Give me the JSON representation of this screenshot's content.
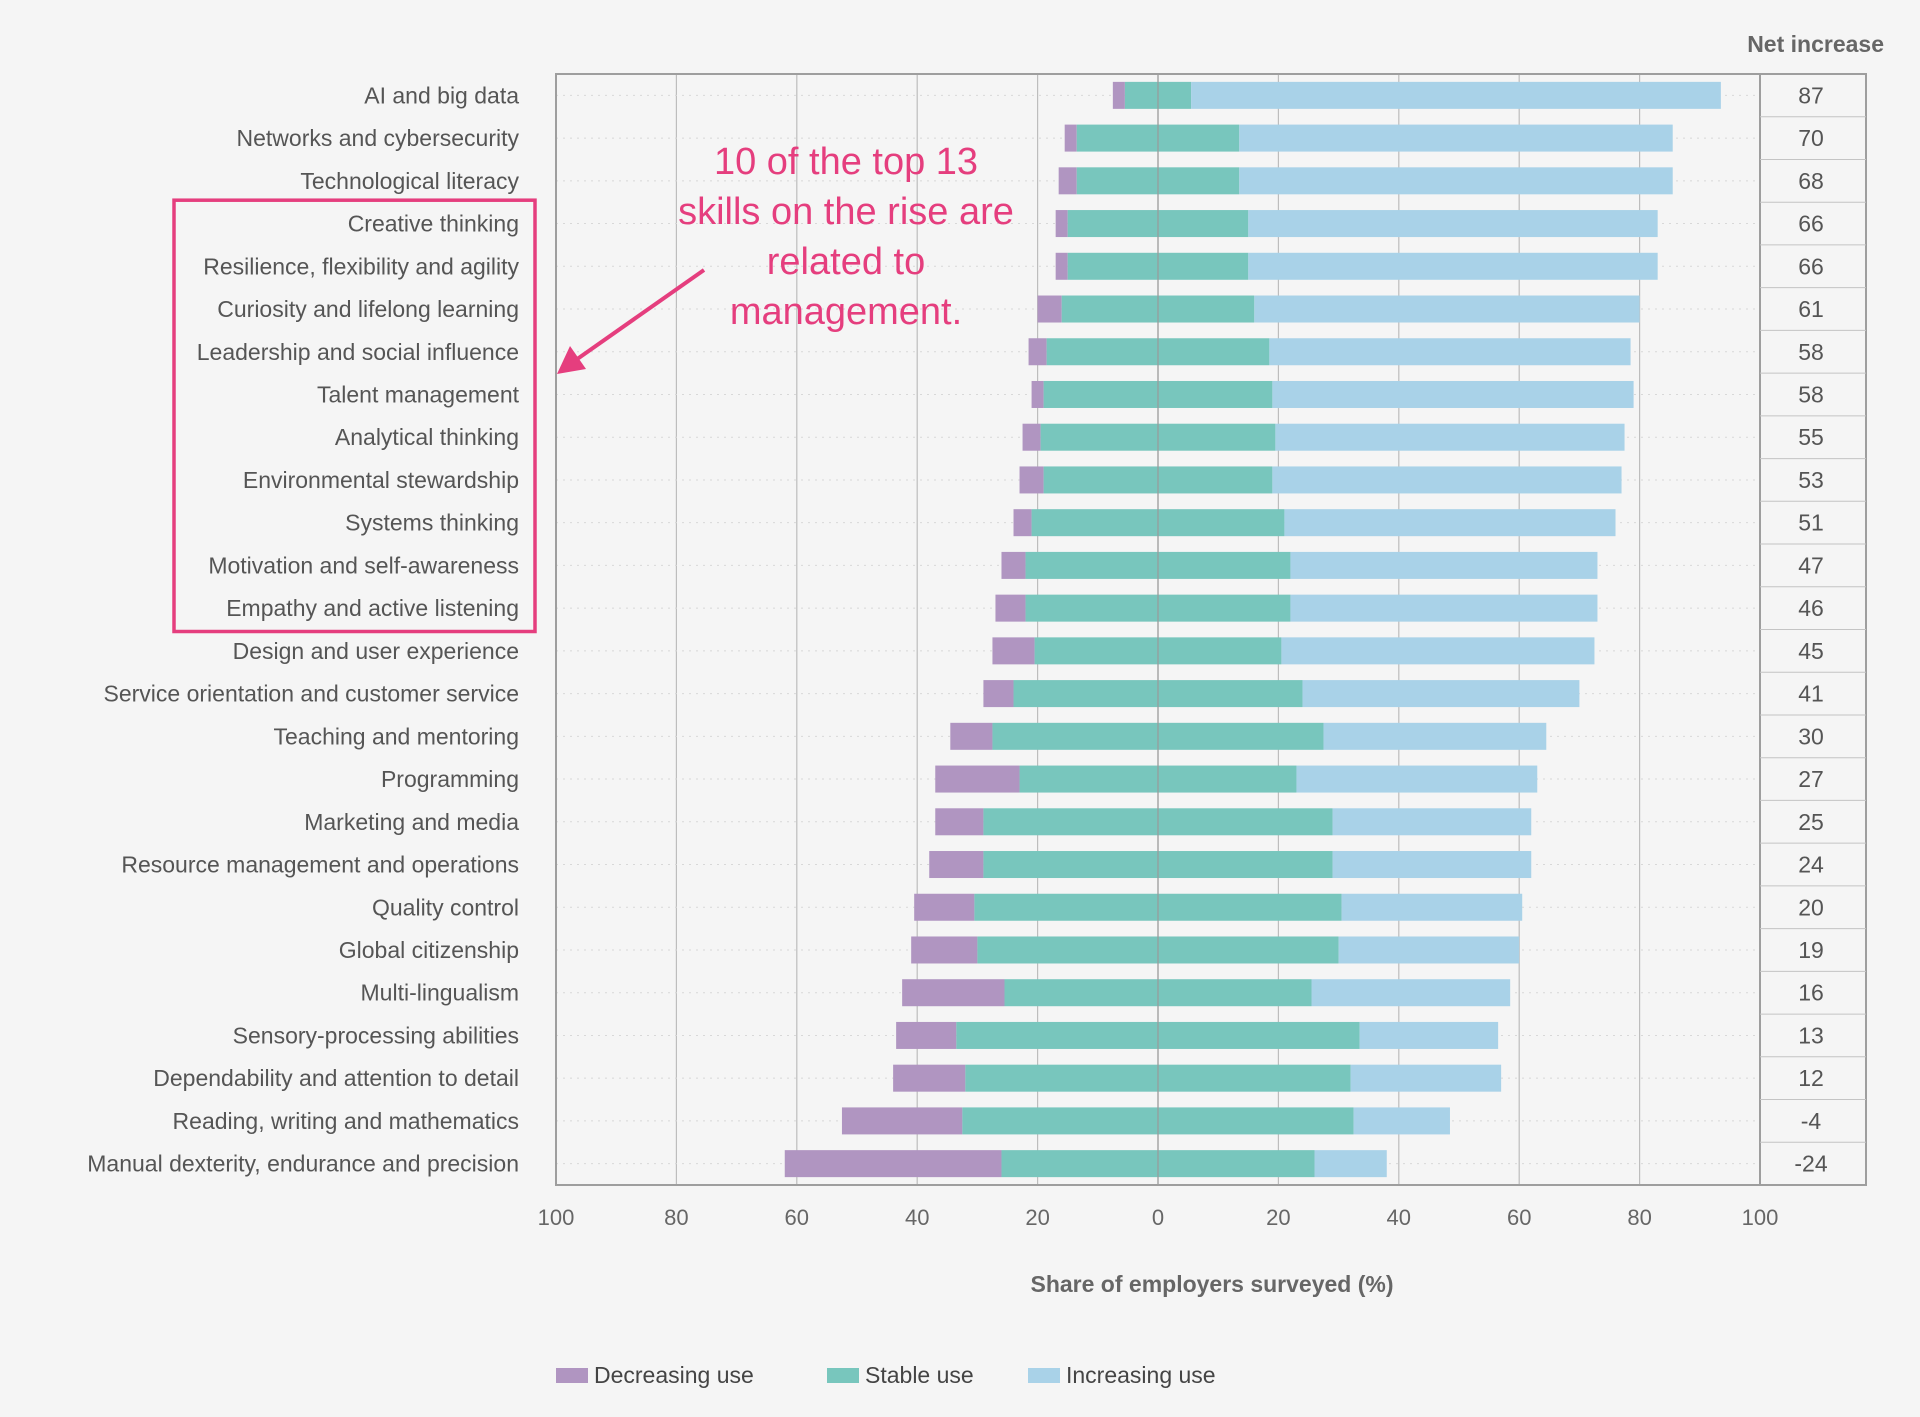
{
  "colors": {
    "decreasing": "#b095c1",
    "stable": "#78c6bd",
    "increasing": "#a9d2e8",
    "annotation": "#e53e7e",
    "grid": "#bdbdbd",
    "frame": "#9e9e9e"
  },
  "chart_data": {
    "type": "bar",
    "orientation": "horizontal",
    "stacked": "diverging",
    "xlabel": "Share of employers surveyed (%)",
    "xlim": [
      -100,
      100
    ],
    "xticks": [
      -100,
      -80,
      -60,
      -40,
      -20,
      0,
      20,
      40,
      60,
      80,
      100
    ],
    "xtick_labels": [
      "100",
      "80",
      "60",
      "40",
      "20",
      "0",
      "20",
      "40",
      "60",
      "80",
      "100"
    ],
    "net_header": "Net increase",
    "categories": [
      "AI and big data",
      "Networks and cybersecurity",
      "Technological literacy",
      "Creative thinking",
      "Resilience, flexibility and agility",
      "Curiosity and lifelong learning",
      "Leadership and social influence",
      "Talent management",
      "Analytical thinking",
      "Environmental stewardship",
      "Systems thinking",
      "Motivation and self-awareness",
      "Empathy and active listening",
      "Design and user experience",
      "Service orientation and customer service",
      "Teaching and mentoring",
      "Programming",
      "Marketing and media",
      "Resource management and operations",
      "Quality control",
      "Global citizenship",
      "Multi-lingualism",
      "Sensory-processing abilities",
      "Dependability and attention to detail",
      "Reading, writing and mathematics",
      "Manual dexterity, endurance and precision"
    ],
    "series": [
      {
        "name": "Decreasing use",
        "values": [
          2,
          2,
          3,
          2,
          2,
          4,
          3,
          2,
          3,
          4,
          3,
          4,
          5,
          7,
          5,
          7,
          14,
          8,
          9,
          10,
          11,
          17,
          10,
          12,
          20,
          36
        ]
      },
      {
        "name": "Stable use",
        "values": [
          11,
          27,
          27,
          30,
          30,
          32,
          37,
          38,
          39,
          38,
          42,
          44,
          44,
          41,
          48,
          55,
          46,
          58,
          58,
          61,
          60,
          51,
          67,
          64,
          65,
          52
        ]
      },
      {
        "name": "Increasing use",
        "values": [
          88,
          72,
          72,
          68,
          68,
          64,
          60,
          60,
          58,
          58,
          55,
          51,
          51,
          52,
          46,
          37,
          40,
          33,
          33,
          30,
          30,
          33,
          23,
          25,
          16,
          12
        ]
      }
    ],
    "net_increase": [
      "87",
      "70",
      "68",
      "66",
      "66",
      "61",
      "58",
      "58",
      "55",
      "53",
      "51",
      "47",
      "46",
      "45",
      "41",
      "30",
      "27",
      "25",
      "24",
      "20",
      "19",
      "16",
      "13",
      "12",
      "-4",
      "-24"
    ],
    "highlighted_range": [
      "Creative thinking",
      "Empathy and active listening"
    ],
    "annotation": {
      "lines": [
        "10 of the top 13",
        "skills on the rise are",
        "related to",
        "management."
      ]
    },
    "legend": [
      "Decreasing use",
      "Stable use",
      "Increasing use"
    ],
    "legend_position": "bottom"
  }
}
